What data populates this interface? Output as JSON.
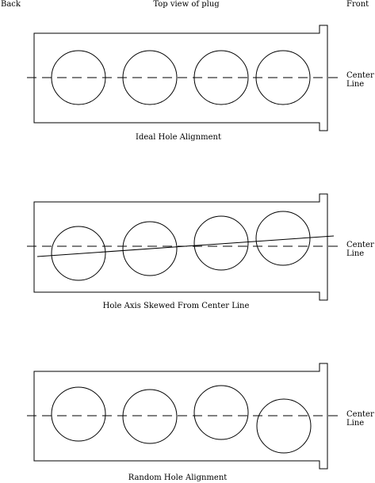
{
  "header": {
    "back_label": "Back",
    "top_label": "Top view of plug",
    "front_label": "Front"
  },
  "panels": [
    {
      "caption": "Ideal Hole Alignment",
      "center_line_label": [
        "Center",
        "Line"
      ],
      "skewed_axis": false
    },
    {
      "caption": "Hole Axis Skewed From Center Line",
      "center_line_label": [
        "Center",
        "Line"
      ],
      "skewed_axis": true
    },
    {
      "caption": "Random Hole Alignment",
      "center_line_label": [
        "Center",
        "Line"
      ],
      "skewed_axis": false
    }
  ]
}
